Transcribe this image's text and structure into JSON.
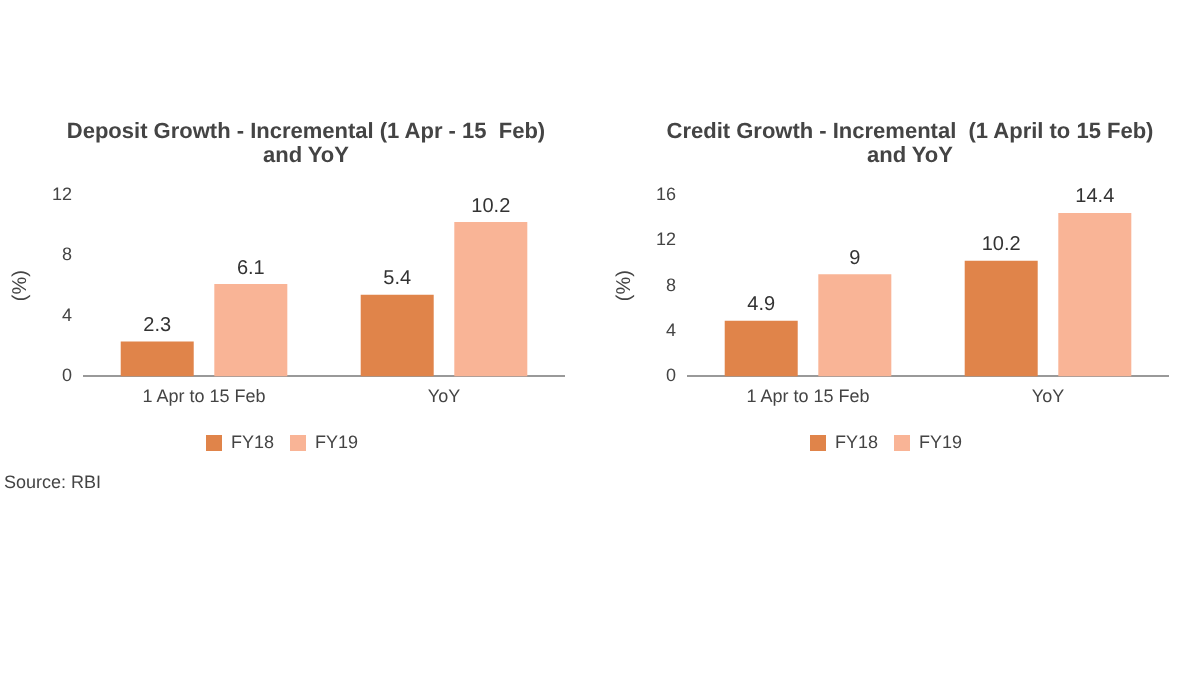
{
  "chart_data": [
    {
      "type": "bar",
      "title": "Deposit Growth - Incremental (1 Apr - 15  Feb) and YoY",
      "ylabel": "(%)",
      "categories": [
        "1 Apr to 15 Feb",
        "YoY"
      ],
      "series": [
        {
          "name": "FY18",
          "color": "#e0844a",
          "values": [
            2.3,
            5.4
          ]
        },
        {
          "name": "FY19",
          "color": "#f9b496",
          "values": [
            6.1,
            10.2
          ]
        }
      ],
      "ylim": [
        0,
        12
      ],
      "yticks": [
        0,
        4,
        8,
        12
      ],
      "grid": false,
      "legend": "bottom",
      "data_labels": true,
      "annotations": [
        "Source: RBI"
      ]
    },
    {
      "type": "bar",
      "title": "Credit Growth - Incremental  (1 April to 15 Feb) and YoY",
      "ylabel": "(%)",
      "categories": [
        "1 Apr to 15 Feb",
        "YoY"
      ],
      "series": [
        {
          "name": "FY18",
          "color": "#e0844a",
          "values": [
            4.9,
            10.2
          ]
        },
        {
          "name": "FY19",
          "color": "#f9b496",
          "values": [
            9,
            14.4
          ]
        }
      ],
      "ylim": [
        0,
        16
      ],
      "yticks": [
        0,
        4,
        8,
        12,
        16
      ],
      "grid": false,
      "legend": "bottom",
      "data_labels": true
    }
  ]
}
